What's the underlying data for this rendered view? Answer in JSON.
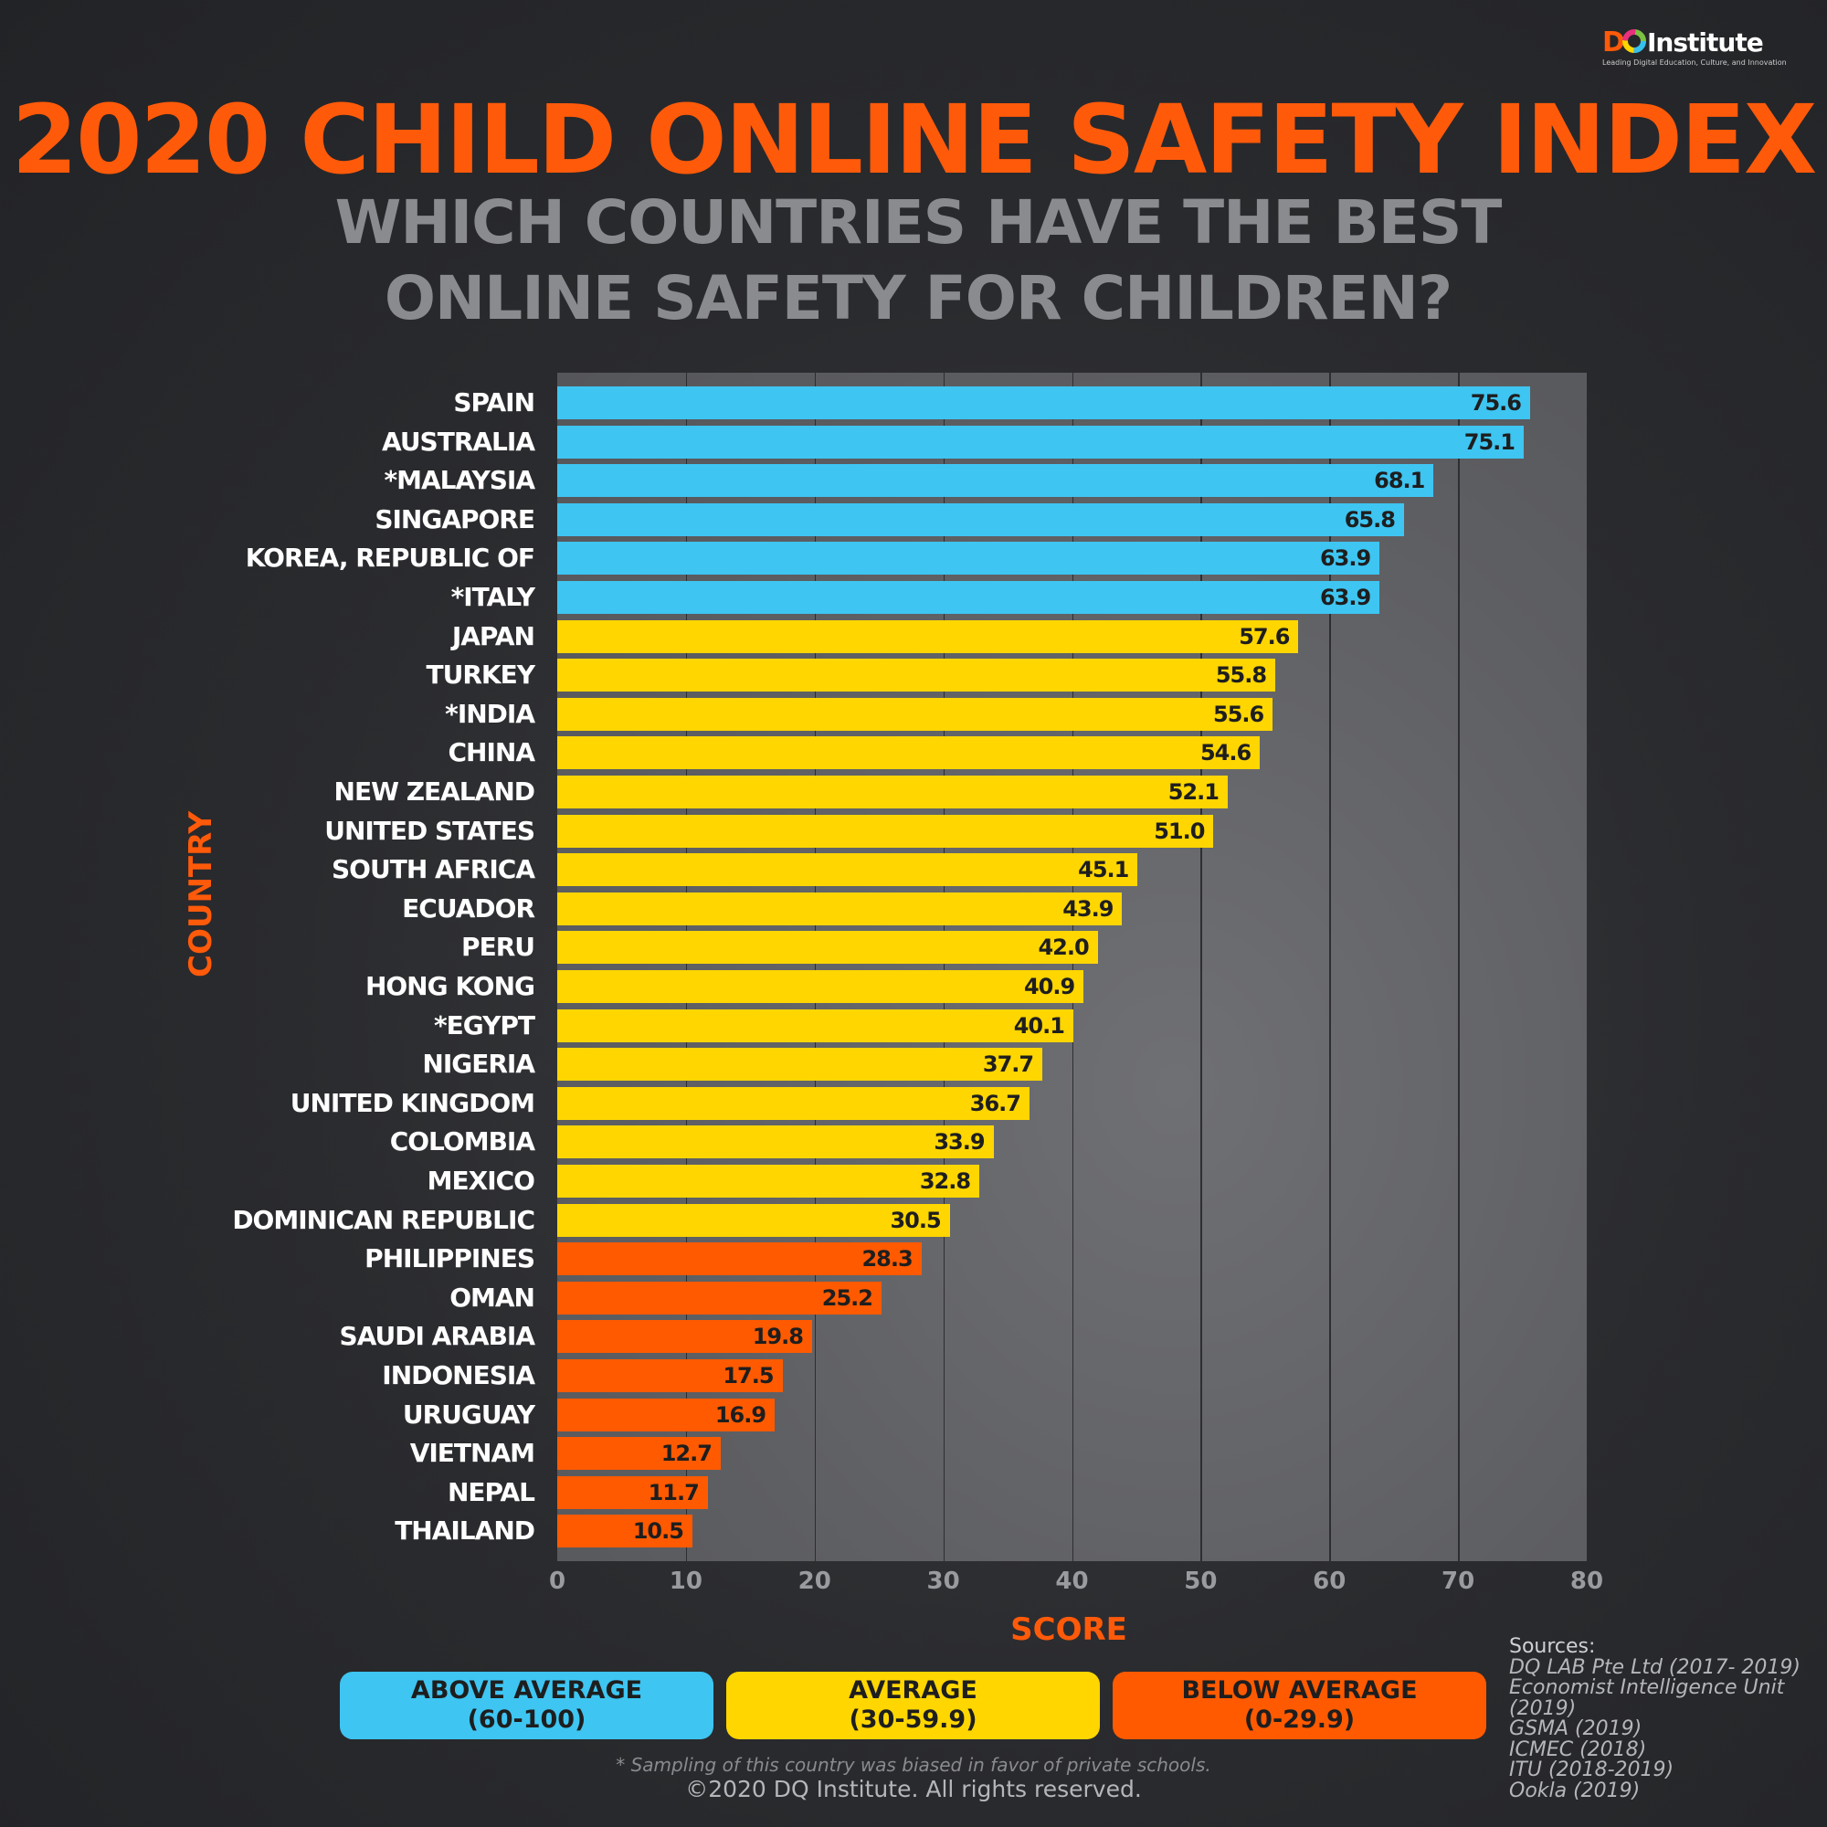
{
  "logo": {
    "brand": "DQ Institute",
    "tagline": "Leading Digital Education, Culture, and Innovation"
  },
  "colors": {
    "above": "#3ec5f2",
    "average": "#ffd600",
    "below": "#ff5a00"
  },
  "chart_data": {
    "type": "bar",
    "orientation": "horizontal",
    "title": "2020 CHILD ONLINE SAFETY INDEX",
    "subtitle": [
      "WHICH COUNTRIES HAVE THE BEST",
      "ONLINE SAFETY FOR CHILDREN?"
    ],
    "xlabel": "SCORE",
    "ylabel": "COUNTRY",
    "xlim": [
      0,
      80
    ],
    "xticks": [
      "0",
      "10",
      "20",
      "30",
      "40",
      "50",
      "60",
      "70",
      "80"
    ],
    "grid": true,
    "categories": [
      "SPAIN",
      "AUSTRALIA",
      "*MALAYSIA",
      "SINGAPORE",
      "KOREA, REPUBLIC OF",
      "*ITALY",
      "JAPAN",
      "TURKEY",
      "*INDIA",
      "CHINA",
      "NEW ZEALAND",
      "UNITED STATES",
      "SOUTH AFRICA",
      "ECUADOR",
      "PERU",
      "HONG KONG",
      "*EGYPT",
      "NIGERIA",
      "UNITED KINGDOM",
      "COLOMBIA",
      "MEXICO",
      "DOMINICAN REPUBLIC",
      "PHILIPPINES",
      "OMAN",
      "SAUDI ARABIA",
      "INDONESIA",
      "URUGUAY",
      "VIETNAM",
      "NEPAL",
      "THAILAND"
    ],
    "values": [
      75.6,
      75.1,
      68.1,
      65.8,
      63.9,
      63.9,
      57.6,
      55.8,
      55.6,
      54.6,
      52.1,
      51.0,
      45.1,
      43.9,
      42.0,
      40.9,
      40.1,
      37.7,
      36.7,
      33.9,
      32.8,
      30.5,
      28.3,
      25.2,
      19.8,
      17.5,
      16.9,
      12.7,
      11.7,
      10.5
    ],
    "labels": [
      "75.6",
      "75.1",
      "68.1",
      "65.8",
      "63.9",
      "63.9",
      "57.6",
      "55.8",
      "55.6",
      "54.6",
      "52.1",
      "51.0",
      "45.1",
      "43.9",
      "42.0",
      "40.9",
      "40.1",
      "37.7",
      "36.7",
      "33.9",
      "32.8",
      "30.5",
      "28.3",
      "25.2",
      "19.8",
      "17.5",
      "16.9",
      "12.7",
      "11.7",
      "10.5"
    ],
    "legend": [
      {
        "name": "ABOVE AVERAGE",
        "range": "(60-100)",
        "color": "#3ec5f2"
      },
      {
        "name": "AVERAGE",
        "range": "(30-59.9)",
        "color": "#ffd600"
      },
      {
        "name": "BELOW AVERAGE",
        "range": "(0-29.9)",
        "color": "#ff5a00"
      }
    ],
    "legend_position": "bottom"
  },
  "sources": {
    "heading": "Sources:",
    "items": [
      "DQ LAB Pte Ltd (2017- 2019)",
      "Economist Intelligence Unit (2019)",
      "GSMA (2019)",
      "ICMEC (2018)",
      "ITU (2018-2019)",
      "Ookla (2019)"
    ]
  },
  "footnote": "* Sampling of this country was biased in favor of private schools.",
  "copyright": "©2020 DQ Institute. All rights reserved."
}
